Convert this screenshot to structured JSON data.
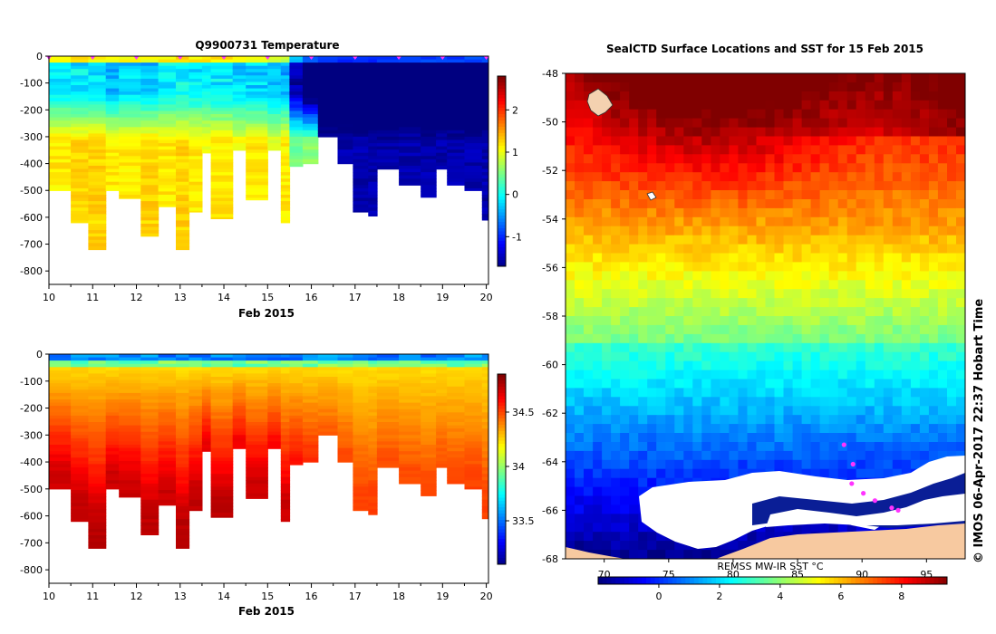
{
  "chart_data": [
    {
      "type": "heatmap",
      "title": "Q9900731  Temperature",
      "xlabel": "Feb 2015",
      "ylabel": "",
      "x_ticks": [
        "10",
        "11",
        "12",
        "13",
        "14",
        "15",
        "16",
        "17",
        "18",
        "19",
        "20"
      ],
      "y_ticks": [
        "0",
        "-100",
        "-200",
        "-300",
        "-400",
        "-500",
        "-600",
        "-700",
        "-800"
      ],
      "xlim": [
        10,
        20.05
      ],
      "ylim": [
        -850,
        0
      ],
      "colorbar": {
        "ticks": [
          "-1",
          "0",
          "1",
          "2"
        ],
        "range": [
          -1.7,
          2.8
        ],
        "colormap": "jet"
      },
      "profile_markers_x": [
        10,
        11,
        12,
        13,
        14,
        15,
        16,
        17,
        18,
        19,
        20
      ],
      "profiles": [
        {
          "x0": 10.0,
          "x1": 10.5,
          "bottom": -500,
          "surface": 0.8,
          "deep": 1.2
        },
        {
          "x0": 10.5,
          "x1": 10.9,
          "bottom": -620,
          "surface": 0.8,
          "deep": 1.3
        },
        {
          "x0": 10.9,
          "x1": 11.3,
          "bottom": -720,
          "surface": 0.7,
          "deep": 1.3
        },
        {
          "x0": 11.3,
          "x1": 11.6,
          "bottom": -500,
          "surface": 0.6,
          "deep": 1.2
        },
        {
          "x0": 11.6,
          "x1": 12.1,
          "bottom": -530,
          "surface": 0.7,
          "deep": 1.2
        },
        {
          "x0": 12.1,
          "x1": 12.5,
          "bottom": -670,
          "surface": 0.6,
          "deep": 1.3
        },
        {
          "x0": 12.5,
          "x1": 12.9,
          "bottom": -560,
          "surface": 0.8,
          "deep": 1.2
        },
        {
          "x0": 12.9,
          "x1": 13.2,
          "bottom": -720,
          "surface": 0.9,
          "deep": 1.3
        },
        {
          "x0": 13.2,
          "x1": 13.5,
          "bottom": -580,
          "surface": 0.8,
          "deep": 1.2
        },
        {
          "x0": 13.5,
          "x1": 13.7,
          "bottom": -360,
          "surface": 0.9,
          "deep": 1.1
        },
        {
          "x0": 13.7,
          "x1": 14.2,
          "bottom": -605,
          "surface": 0.8,
          "deep": 1.2
        },
        {
          "x0": 14.2,
          "x1": 14.5,
          "bottom": -350,
          "surface": 0.7,
          "deep": 1.1
        },
        {
          "x0": 14.5,
          "x1": 15.0,
          "bottom": -535,
          "surface": 0.7,
          "deep": 1.2
        },
        {
          "x0": 15.0,
          "x1": 15.3,
          "bottom": -350,
          "surface": 0.6,
          "deep": 1.0
        },
        {
          "x0": 15.3,
          "x1": 15.5,
          "bottom": -620,
          "surface": 0.5,
          "deep": 1.2
        },
        {
          "x0": 15.5,
          "x1": 15.8,
          "bottom": -410,
          "surface": -0.6,
          "deep": 0.5
        },
        {
          "x0": 15.8,
          "x1": 16.15,
          "bottom": -400,
          "surface": -1.2,
          "deep": 0.6
        },
        {
          "x0": 16.15,
          "x1": 16.6,
          "bottom": -300,
          "surface": -1.4,
          "deep": -1.5
        },
        {
          "x0": 16.6,
          "x1": 16.95,
          "bottom": -400,
          "surface": -1.4,
          "deep": -1.5
        },
        {
          "x0": 16.95,
          "x1": 17.3,
          "bottom": -580,
          "surface": -1.3,
          "deep": -1.5
        },
        {
          "x0": 17.3,
          "x1": 17.5,
          "bottom": -595,
          "surface": -1.3,
          "deep": -1.5
        },
        {
          "x0": 17.5,
          "x1": 18.0,
          "bottom": -420,
          "surface": -1.2,
          "deep": -1.5
        },
        {
          "x0": 18.0,
          "x1": 18.5,
          "bottom": -480,
          "surface": -1.3,
          "deep": -1.5
        },
        {
          "x0": 18.5,
          "x1": 18.85,
          "bottom": -525,
          "surface": -1.2,
          "deep": -1.5
        },
        {
          "x0": 18.85,
          "x1": 19.1,
          "bottom": -420,
          "surface": -1.2,
          "deep": -1.5
        },
        {
          "x0": 19.1,
          "x1": 19.5,
          "bottom": -480,
          "surface": -1.3,
          "deep": -1.5
        },
        {
          "x0": 19.5,
          "x1": 19.9,
          "bottom": -500,
          "surface": -1.3,
          "deep": -1.5
        },
        {
          "x0": 19.9,
          "x1": 20.05,
          "bottom": -610,
          "surface": -1.2,
          "deep": -1.5
        }
      ]
    },
    {
      "type": "heatmap",
      "title": "",
      "xlabel": "Feb 2015",
      "ylabel": "",
      "x_ticks": [
        "10",
        "11",
        "12",
        "13",
        "14",
        "15",
        "16",
        "17",
        "18",
        "19",
        "20"
      ],
      "y_ticks": [
        "0",
        "-100",
        "-200",
        "-300",
        "-400",
        "-500",
        "-600",
        "-700",
        "-800"
      ],
      "xlim": [
        10,
        20.05
      ],
      "ylim": [
        -850,
        0
      ],
      "colorbar": {
        "ticks": [
          "33.5",
          "34",
          "34.5"
        ],
        "range": [
          33.1,
          34.85
        ],
        "colormap": "jet"
      },
      "profiles": [
        {
          "x0": 10.0,
          "x1": 10.5,
          "bottom": -500,
          "deep": 34.72
        },
        {
          "x0": 10.5,
          "x1": 10.9,
          "bottom": -620,
          "deep": 34.74
        },
        {
          "x0": 10.9,
          "x1": 11.3,
          "bottom": -720,
          "deep": 34.75
        },
        {
          "x0": 11.3,
          "x1": 11.6,
          "bottom": -500,
          "deep": 34.72
        },
        {
          "x0": 11.6,
          "x1": 12.1,
          "bottom": -530,
          "deep": 34.72
        },
        {
          "x0": 12.1,
          "x1": 12.5,
          "bottom": -670,
          "deep": 34.74
        },
        {
          "x0": 12.5,
          "x1": 12.9,
          "bottom": -560,
          "deep": 34.72
        },
        {
          "x0": 12.9,
          "x1": 13.2,
          "bottom": -720,
          "deep": 34.75
        },
        {
          "x0": 13.2,
          "x1": 13.5,
          "bottom": -580,
          "deep": 34.74
        },
        {
          "x0": 13.5,
          "x1": 13.7,
          "bottom": -360,
          "deep": 34.68
        },
        {
          "x0": 13.7,
          "x1": 14.2,
          "bottom": -605,
          "deep": 34.74
        },
        {
          "x0": 14.2,
          "x1": 14.5,
          "bottom": -350,
          "deep": 34.66
        },
        {
          "x0": 14.5,
          "x1": 15.0,
          "bottom": -535,
          "deep": 34.72
        },
        {
          "x0": 15.0,
          "x1": 15.3,
          "bottom": -350,
          "deep": 34.64
        },
        {
          "x0": 15.3,
          "x1": 15.5,
          "bottom": -620,
          "deep": 34.72
        },
        {
          "x0": 15.5,
          "x1": 15.8,
          "bottom": -410,
          "deep": 34.6
        },
        {
          "x0": 15.8,
          "x1": 16.15,
          "bottom": -400,
          "deep": 34.55
        },
        {
          "x0": 16.15,
          "x1": 16.6,
          "bottom": -300,
          "deep": 34.48
        },
        {
          "x0": 16.6,
          "x1": 16.95,
          "bottom": -400,
          "deep": 34.5
        },
        {
          "x0": 16.95,
          "x1": 17.3,
          "bottom": -580,
          "deep": 34.52
        },
        {
          "x0": 17.3,
          "x1": 17.5,
          "bottom": -595,
          "deep": 34.52
        },
        {
          "x0": 17.5,
          "x1": 18.0,
          "bottom": -420,
          "deep": 34.5
        },
        {
          "x0": 18.0,
          "x1": 18.5,
          "bottom": -480,
          "deep": 34.5
        },
        {
          "x0": 18.5,
          "x1": 18.85,
          "bottom": -525,
          "deep": 34.5
        },
        {
          "x0": 18.85,
          "x1": 19.1,
          "bottom": -420,
          "deep": 34.49
        },
        {
          "x0": 19.1,
          "x1": 19.5,
          "bottom": -480,
          "deep": 34.5
        },
        {
          "x0": 19.5,
          "x1": 19.9,
          "bottom": -500,
          "deep": 34.52
        },
        {
          "x0": 19.9,
          "x1": 20.05,
          "bottom": -610,
          "deep": 34.52
        }
      ]
    },
    {
      "type": "heatmap",
      "title": "SealCTD Surface Locations and SST for 15 Feb 2015",
      "xlabel": "",
      "ylabel": "",
      "lat_ticks": [
        "-48",
        "-50",
        "-52",
        "-54",
        "-56",
        "-58",
        "-60",
        "-62",
        "-64",
        "-66",
        "-68"
      ],
      "lon_ticks": [
        "70",
        "75",
        "80",
        "85",
        "90",
        "95"
      ],
      "lat_range": [
        -68,
        -48
      ],
      "lon_range": [
        67,
        98
      ],
      "colorbar": {
        "label": "REMSS MW-IR SST °C",
        "ticks": [
          "0",
          "2",
          "4",
          "6",
          "8"
        ],
        "range": [
          -2,
          9.5
        ],
        "colormap": "jet"
      },
      "land_color": "#f7c9a0",
      "ice_color": "#ffffff",
      "marker_color": "#ff33ff",
      "markers": [
        {
          "lon": 89.2,
          "lat": -64.9
        },
        {
          "lon": 90.1,
          "lat": -65.3
        },
        {
          "lon": 91.0,
          "lat": -65.6
        },
        {
          "lon": 92.3,
          "lat": -65.9
        },
        {
          "lon": 92.8,
          "lat": -66.0
        },
        {
          "lon": 88.6,
          "lat": -63.3
        },
        {
          "lon": 89.3,
          "lat": -64.1
        }
      ]
    }
  ],
  "side_text": "©  IMOS 06-Apr-2017 22:37 Hobart Time"
}
